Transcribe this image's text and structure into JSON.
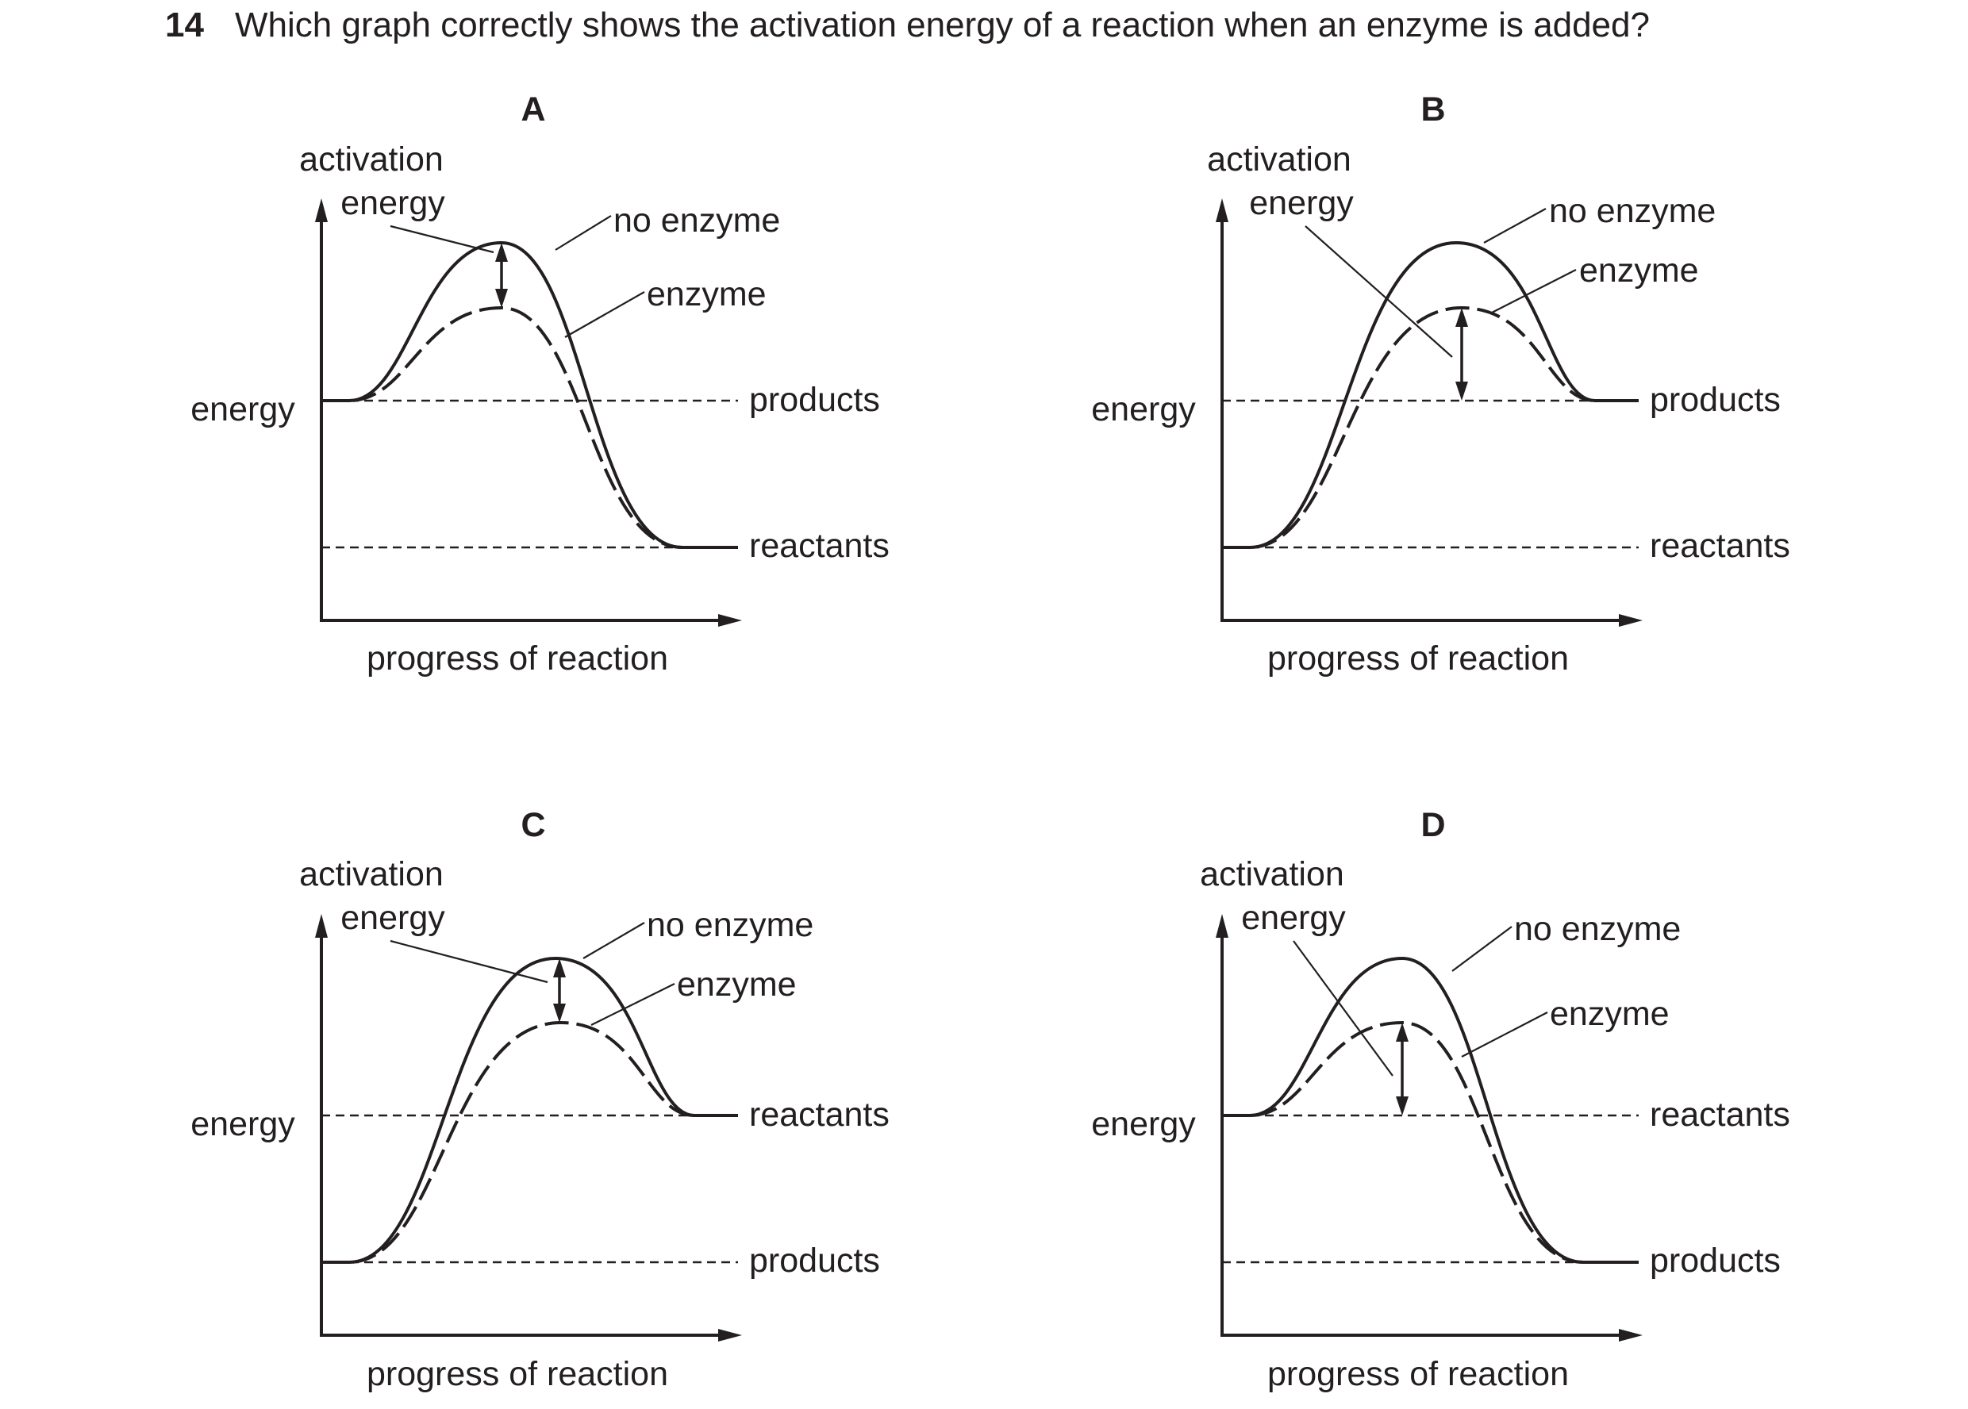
{
  "question": {
    "number": "14",
    "text": "Which graph correctly shows the activation energy of a reaction when an enzyme is added?"
  },
  "options": [
    {
      "letter": "A",
      "activation_label_line1": "activation",
      "activation_label_line2": "energy",
      "y_axis_label": "energy",
      "x_axis_label": "progress of reaction",
      "curve_labels": {
        "no_enzyme": "no enzyme",
        "enzyme": "enzyme"
      },
      "upper_level_label": "products",
      "lower_level_label": "reactants"
    },
    {
      "letter": "B",
      "activation_label_line1": "activation",
      "activation_label_line2": "energy",
      "y_axis_label": "energy",
      "x_axis_label": "progress of reaction",
      "curve_labels": {
        "no_enzyme": "no enzyme",
        "enzyme": "enzyme"
      },
      "upper_level_label": "products",
      "lower_level_label": "reactants"
    },
    {
      "letter": "C",
      "activation_label_line1": "activation",
      "activation_label_line2": "energy",
      "y_axis_label": "energy",
      "x_axis_label": "progress of reaction",
      "curve_labels": {
        "no_enzyme": "no enzyme",
        "enzyme": "enzyme"
      },
      "upper_level_label": "reactants",
      "lower_level_label": "products"
    },
    {
      "letter": "D",
      "activation_label_line1": "activation",
      "activation_label_line2": "energy",
      "y_axis_label": "energy",
      "x_axis_label": "progress of reaction",
      "curve_labels": {
        "no_enzyme": "no enzyme",
        "enzyme": "enzyme"
      },
      "upper_level_label": "reactants",
      "lower_level_label": "products"
    }
  ]
}
